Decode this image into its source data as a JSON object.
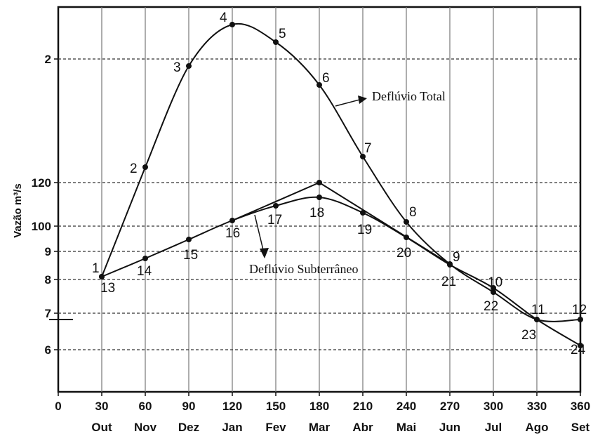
{
  "chart_data": {
    "type": "line",
    "ylabel": "Vazão m³/s",
    "x_ticks": [
      "0",
      "30",
      "60",
      "90",
      "120",
      "150",
      "180",
      "210",
      "240",
      "270",
      "300",
      "330",
      "360"
    ],
    "month_labels": [
      "Out",
      "Nov",
      "Dez",
      "Jan",
      "Fev",
      "Mar",
      "Abr",
      "Mai",
      "Jun",
      "Jul",
      "Ago",
      "Set"
    ],
    "y_tick_labels": [
      "2",
      "120",
      "100",
      "9",
      "8",
      "7",
      "6"
    ],
    "xlim": [
      0,
      360
    ],
    "grid": true,
    "series": [
      {
        "name": "Deflúvio Total",
        "x": [
          30,
          60,
          90,
          120,
          150,
          180,
          210,
          240,
          270,
          300,
          330,
          360
        ],
        "labels": [
          "1",
          "2",
          "3",
          "4",
          "5",
          "6",
          "7",
          "8",
          "9",
          "10",
          "11",
          "12"
        ]
      },
      {
        "name": "Deflúvio Subterrâneo",
        "x": [
          30,
          60,
          90,
          120,
          150,
          180,
          210,
          240,
          270,
          300,
          330,
          360
        ],
        "labels": [
          "13",
          "14",
          "15",
          "16",
          "17",
          "18",
          "19",
          "20",
          "21",
          "22",
          "23",
          "24"
        ]
      }
    ],
    "annotations": [
      "Deflúvio Total",
      "Deflúvio Subterrâneo"
    ]
  }
}
